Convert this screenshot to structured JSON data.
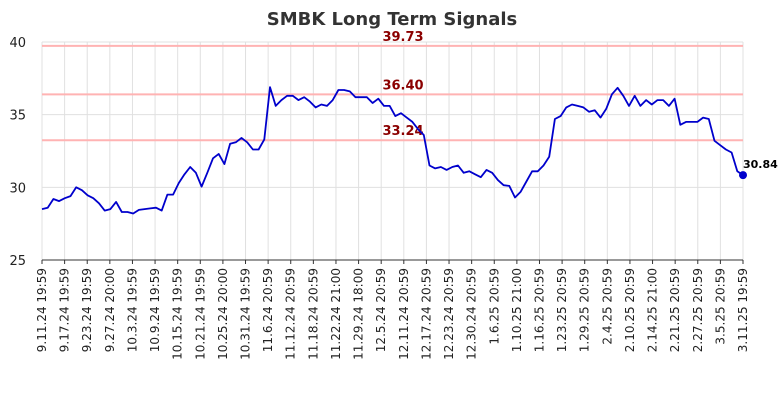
{
  "chart_data": {
    "type": "line",
    "title": "SMBK Long Term Signals",
    "ylim": [
      25,
      40
    ],
    "yticks": [
      25,
      30,
      35,
      40
    ],
    "grid": true,
    "xtick_labels": [
      "9.11.24 19:59",
      "9.17.24 19:59",
      "9.23.24 19:59",
      "9.27.24 20:00",
      "10.3.24 19:59",
      "10.9.24 19:59",
      "10.15.24 19:59",
      "10.21.24 19:59",
      "10.25.24 20:00",
      "10.31.24 19:59",
      "11.6.24 20:59",
      "11.12.24 20:59",
      "11.18.24 20:59",
      "11.22.24 21:00",
      "11.29.24 18:00",
      "12.5.24 20:59",
      "12.11.24 20:59",
      "12.17.24 20:59",
      "12.23.24 20:59",
      "12.30.24 20:59",
      "1.6.25 20:59",
      "1.10.25 21:00",
      "1.16.25 20:59",
      "1.23.25 20:59",
      "1.29.25 20:59",
      "2.4.25 20:59",
      "2.10.25 20:59",
      "2.14.25 21:00",
      "2.21.25 20:59",
      "2.27.25 20:59",
      "3.5.25 20:59",
      "3.11.25 19:59"
    ],
    "signal_lines": [
      {
        "label": "39.73",
        "value": 39.73
      },
      {
        "label": "36.40",
        "value": 36.4
      },
      {
        "label": "33.24",
        "value": 33.24
      }
    ],
    "last_label": "30.84",
    "colors": {
      "line": "#0000cc",
      "signal": "#ffb3b3",
      "signal_text": "#8b0000",
      "grid": "#e0e0e0"
    },
    "series": [
      {
        "values": [
          28.5,
          28.6,
          29.2,
          29.05,
          29.25,
          29.4,
          30.0,
          29.8,
          29.45,
          29.25,
          28.9,
          28.4,
          28.5,
          29.0,
          28.3,
          28.3,
          28.2,
          28.45,
          28.5,
          28.55,
          28.6,
          28.4,
          29.5,
          29.5,
          30.3,
          30.9,
          31.4,
          31.0,
          30.05,
          31.0,
          32.0,
          32.3,
          31.6,
          33.0,
          33.1,
          33.4,
          33.1,
          32.6,
          32.6,
          33.3,
          36.9,
          35.6,
          36.0,
          36.3,
          36.3,
          36.0,
          36.2,
          35.9,
          35.5,
          35.7,
          35.6,
          36.0,
          36.7,
          36.7,
          36.6,
          36.2,
          36.2,
          36.2,
          35.8,
          36.1,
          35.6,
          35.6,
          34.9,
          35.1,
          34.8,
          34.5,
          34.0,
          33.6,
          31.5,
          31.3,
          31.4,
          31.2,
          31.4,
          31.5,
          31.0,
          31.1,
          30.9,
          30.7,
          31.2,
          31.0,
          30.5,
          30.15,
          30.1,
          29.3,
          29.7,
          30.4,
          31.1,
          31.1,
          31.5,
          32.1,
          34.7,
          34.9,
          35.5,
          35.7,
          35.6,
          35.5,
          35.2,
          35.3,
          34.8,
          35.4,
          36.4,
          36.85,
          36.3,
          35.6,
          36.3,
          35.6,
          36.0,
          35.7,
          36.0,
          36.0,
          35.6,
          36.1,
          34.3,
          34.5,
          34.5,
          34.5,
          34.8,
          34.7,
          33.2,
          32.9,
          32.6,
          32.4,
          31.1,
          30.84
        ]
      }
    ]
  }
}
